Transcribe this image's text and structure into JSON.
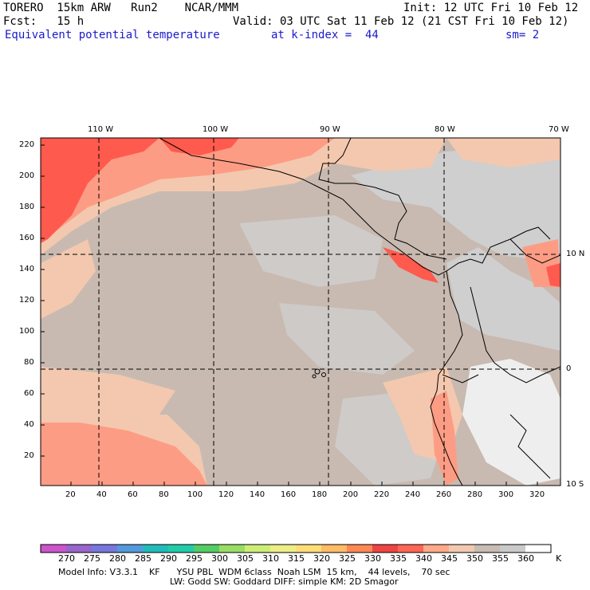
{
  "header": {
    "line1_left": "TORERO  15km ARW   Run2    NCAR/MMM",
    "line1_right": "Init: 12 UTC Fri 10 Feb 12",
    "line2_left": "Fcst:   15 h",
    "line2_right": "Valid: 03 UTC Sat 11 Feb 12 (21 CST Fri 10 Feb 12)",
    "field": "Equivalent potential temperature",
    "level": "at k-index =  44",
    "smooth": "sm= 2"
  },
  "map": {
    "lon_labels": [
      "110 W",
      "100 W",
      "90 W",
      "80 W",
      "70 W"
    ],
    "lat_labels": [
      "10 N",
      "0",
      "10 S"
    ],
    "y_ticks": [
      "220",
      "200",
      "180",
      "160",
      "140",
      "120",
      "100",
      "80",
      "60",
      "40",
      "20"
    ],
    "x_ticks": [
      "20",
      "40",
      "60",
      "80",
      "100",
      "120",
      "140",
      "160",
      "180",
      "200",
      "220",
      "240",
      "260",
      "280",
      "300",
      "320"
    ],
    "grid": true
  },
  "colorbar": {
    "labels": [
      "270",
      "275",
      "280",
      "285",
      "290",
      "295",
      "300",
      "305",
      "310",
      "315",
      "320",
      "325",
      "330",
      "335",
      "340",
      "345",
      "350",
      "355",
      "360"
    ],
    "unit": "K",
    "colors": [
      "#cc55cc",
      "#9966cc",
      "#7777dd",
      "#5599dd",
      "#22bbbb",
      "#22ccaa",
      "#55cc66",
      "#99dd66",
      "#ccee77",
      "#eeee88",
      "#ffdd77",
      "#ffbb66",
      "#ff8855",
      "#ee4444",
      "#ff6655",
      "#ffaa88",
      "#f2c9b0",
      "#c8bcb4",
      "#cacaca",
      "#ffffff"
    ]
  },
  "footer": {
    "line1": "Model Info: V3.3.1    KF      YSU PBL  WDM 6class  Noah LSM  15 km,    44 levels,    70 sec",
    "line2": "LW: Godd SW: Goddard DIFF: simple KM: 2D Smagor"
  },
  "palette": {
    "warm_red": "#ff5a4e",
    "salmon": "#fd9c84",
    "peach": "#f3c8ae",
    "taupe": "#c8bab1",
    "light_grey": "#cfcfcf",
    "white_grey": "#eeeeee"
  }
}
